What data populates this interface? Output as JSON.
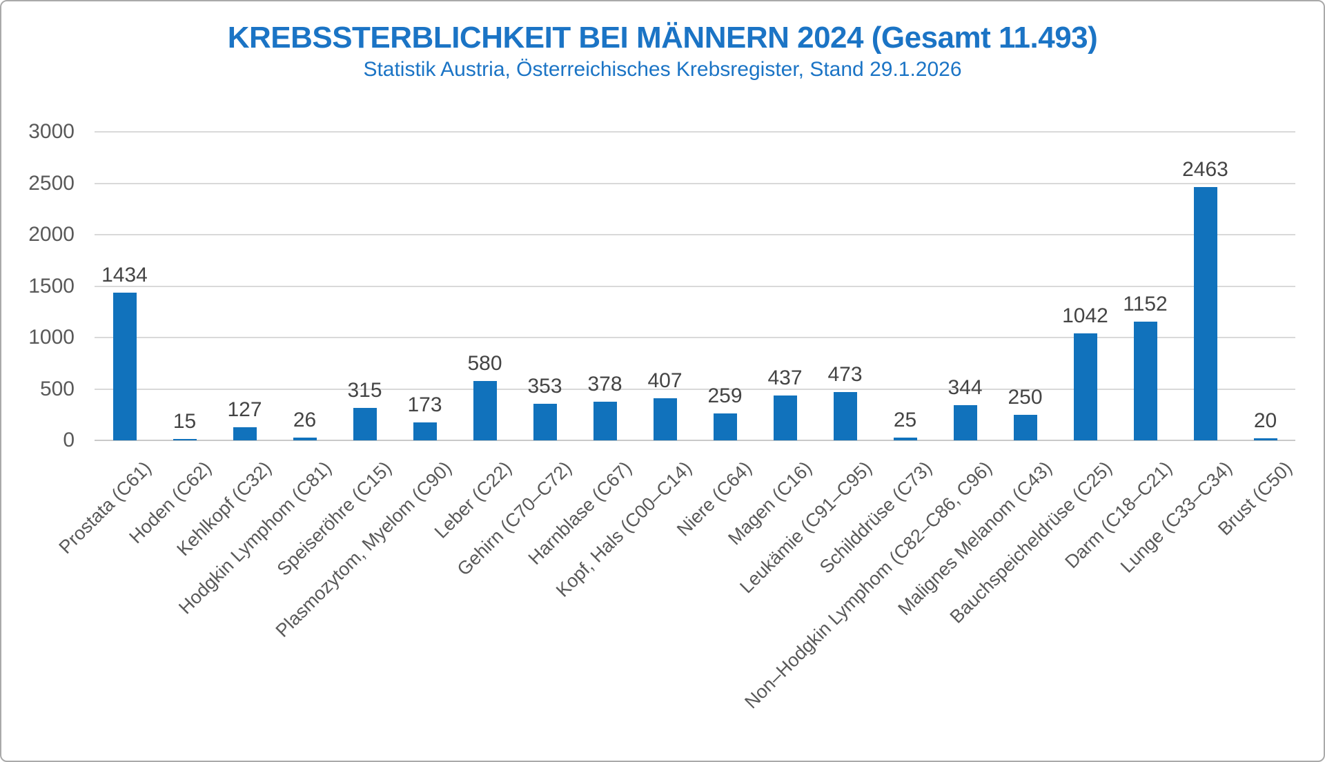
{
  "chart_data": {
    "type": "bar",
    "title": "KREBSSTERBLICHKEIT BEI MÄNNERN 2024 (Gesamt 11.493)",
    "subtitle": "Statistik Austria, Österreichisches Krebsregister, Stand 29.1.2026",
    "categories": [
      "Prostata (C61)",
      "Hoden (C62)",
      "Kehlkopf (C32)",
      "Hodgkin Lymphom (C81)",
      "Speiseröhre (C15)",
      "Plasmozytom, Myelom (C90)",
      "Leber (C22)",
      "Gehirn (C70–C72)",
      "Harnblase (C67)",
      "Kopf, Hals (C00–C14)",
      "Niere (C64)",
      "Magen (C16)",
      "Leukämie (C91–C95)",
      "Schilddrüse (C73)",
      "Non–Hodgkin Lymphom (C82–C86, C96)",
      "Malignes Melanom (C43)",
      "Bauchspeicheldrüse (C25)",
      "Darm (C18–C21)",
      "Lunge (C33–C34)",
      "Brust (C50)"
    ],
    "values": [
      1434,
      15,
      127,
      26,
      315,
      173,
      580,
      353,
      378,
      407,
      259,
      437,
      473,
      25,
      344,
      250,
      1042,
      1152,
      2463,
      20
    ],
    "xlabel": "",
    "ylabel": "",
    "ylim": [
      0,
      3000
    ],
    "yticks": [
      0,
      500,
      1000,
      1500,
      2000,
      2500,
      3000
    ],
    "grid": true,
    "legend": "none",
    "data_labels": true,
    "colors": {
      "bar": "#1172bc",
      "title": "#1b74c5",
      "gridline": "#d9d9d9",
      "tick_text": "#595959",
      "value_text": "#444444"
    }
  }
}
